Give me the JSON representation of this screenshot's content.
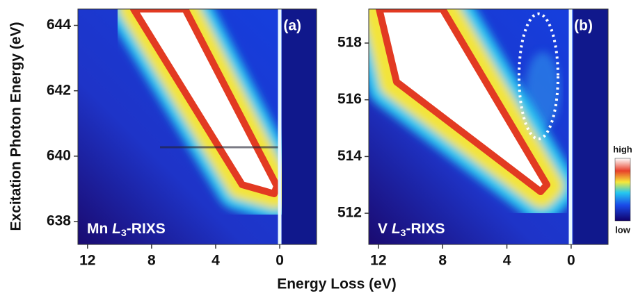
{
  "chart_data": [
    {
      "type": "heatmap",
      "panel_label": "(a)",
      "annotation": [
        "Mn ",
        "L",
        "3",
        "-RIXS"
      ],
      "xlim": [
        12.6,
        -2.3
      ],
      "xticks": [
        12,
        8,
        4,
        0
      ],
      "ylim": [
        637.3,
        644.5
      ],
      "yticks": [
        638,
        640,
        642,
        644
      ]
    },
    {
      "type": "heatmap",
      "panel_label": "(b)",
      "annotation": [
        "V ",
        "L",
        "3",
        "-RIXS"
      ],
      "xlim": [
        12.6,
        -2.3
      ],
      "xticks": [
        12,
        8,
        4,
        0
      ],
      "ylim": [
        510.9,
        519.2
      ],
      "yticks": [
        512,
        514,
        516,
        518
      ]
    }
  ],
  "xlabel": "Energy Loss (eV)",
  "ylabel": "Excitation Photon Energy (eV)",
  "colorbar": {
    "high": "high",
    "low": "low"
  }
}
